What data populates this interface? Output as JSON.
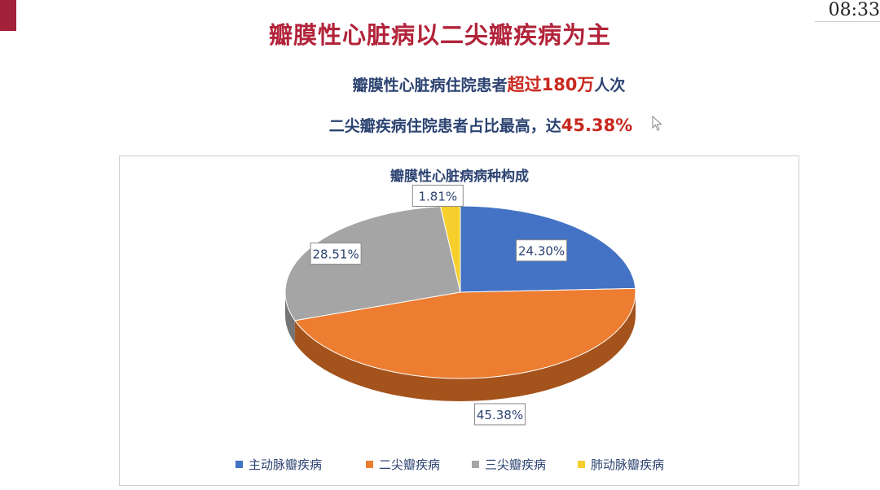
{
  "clock": "08:33",
  "slide": {
    "title": "瓣膜性心脏病以二尖瓣疾病为主",
    "line1_prefix": "瓣膜性心脏病住院患者",
    "line1_highlight": "超过180万",
    "line1_suffix": "人次",
    "line2_prefix": "二尖瓣疾病住院患者占比最高，达",
    "line2_highlight": "45.38%"
  },
  "colors": {
    "title": "#b2243a",
    "subtitle": "#2c4372",
    "highlight": "#c8281e",
    "accent_square": "#a3203a"
  },
  "chart_data": {
    "type": "pie",
    "style": "3d",
    "title": "瓣膜性心脏病病种构成",
    "legend_position": "bottom",
    "slices": [
      {
        "name": "主动脉瓣疾病",
        "value": 24.3,
        "label": "24.30%",
        "color": "#4472c4",
        "side": "#2e5596"
      },
      {
        "name": "二尖瓣疾病",
        "value": 45.38,
        "label": "45.38%",
        "color": "#ed7d31",
        "side": "#a4531c"
      },
      {
        "name": "三尖瓣疾病",
        "value": 28.51,
        "label": "28.51%",
        "color": "#a5a5a5",
        "side": "#757575"
      },
      {
        "name": "肺动脉瓣疾病",
        "value": 1.81,
        "label": "1.81%",
        "color": "#f6cf2c",
        "side": "#b89610"
      }
    ]
  }
}
